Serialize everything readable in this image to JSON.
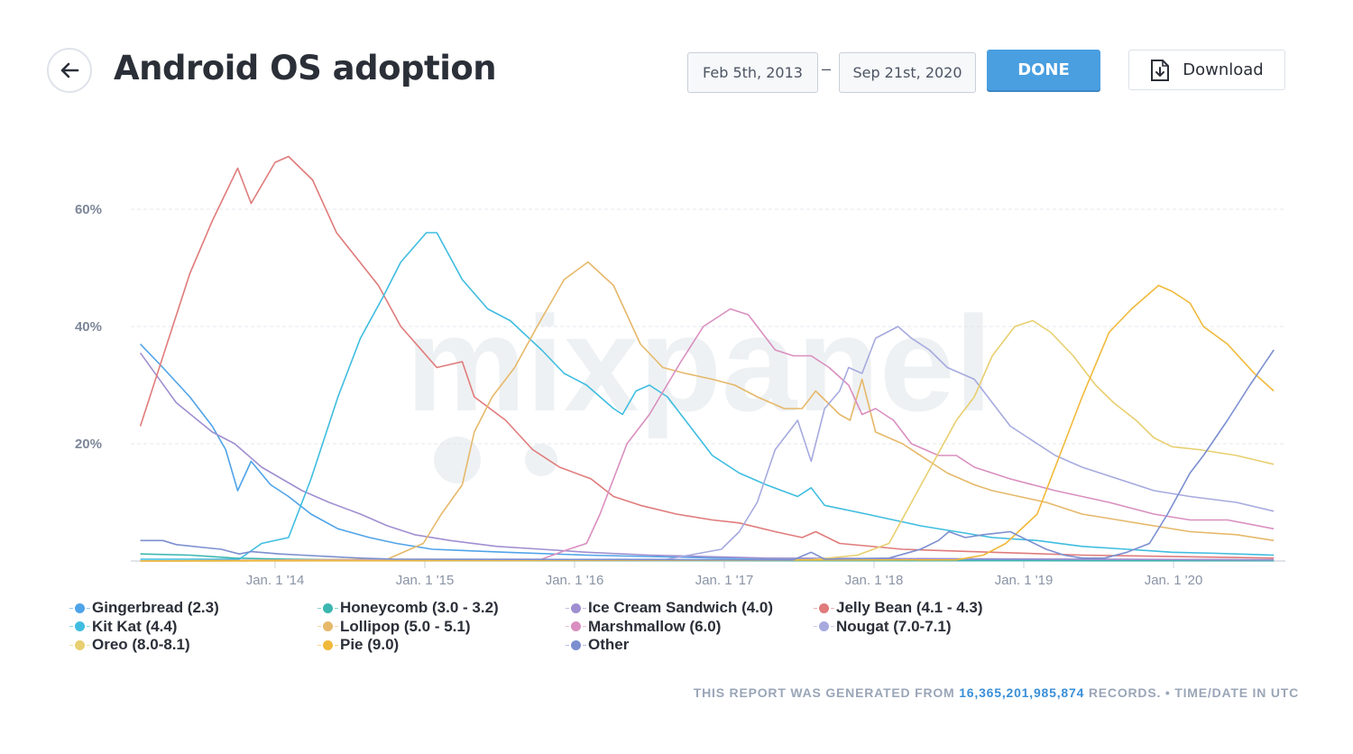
{
  "header": {
    "title": "Android OS adoption",
    "date_from": "Feb 5th, 2013",
    "date_separator": "–",
    "date_to": "Sep 21st, 2020",
    "done_label": "DONE",
    "download_label": "Download"
  },
  "footer": {
    "prefix": "THIS REPORT WAS GENERATED FROM ",
    "records": "16,365,201,985,874",
    "suffix": " RECORDS. • TIME/DATE IN UTC"
  },
  "watermark": "mixpanel",
  "chart_data": {
    "type": "line",
    "title": "Android OS adoption",
    "xlabel": "",
    "ylabel": "",
    "xlim": [
      2013.1,
      2020.67
    ],
    "ylim": [
      0,
      70
    ],
    "y_ticks": [
      {
        "v": 20,
        "label": "20%"
      },
      {
        "v": 40,
        "label": "40%"
      },
      {
        "v": 60,
        "label": "60%"
      }
    ],
    "x_ticks": [
      {
        "v": 2014,
        "label": "Jan. 1 '14"
      },
      {
        "v": 2015,
        "label": "Jan. 1 '15"
      },
      {
        "v": 2016,
        "label": "Jan. 1 '16"
      },
      {
        "v": 2017,
        "label": "Jan. 1 '17"
      },
      {
        "v": 2018,
        "label": "Jan. 1 '18"
      },
      {
        "v": 2019,
        "label": "Jan. 1 '19"
      },
      {
        "v": 2020,
        "label": "Jan. 1 '20"
      }
    ],
    "grid": true,
    "legend_position": "bottom",
    "series": [
      {
        "name": "Gingerbread (2.3)",
        "color": "#4fa3e8",
        "points": [
          [
            2013.1,
            37
          ],
          [
            2013.25,
            33
          ],
          [
            2013.43,
            28
          ],
          [
            2013.58,
            23
          ],
          [
            2013.67,
            19
          ],
          [
            2013.75,
            12
          ],
          [
            2013.84,
            17
          ],
          [
            2013.97,
            13
          ],
          [
            2014.09,
            11
          ],
          [
            2014.24,
            8
          ],
          [
            2014.42,
            5.5
          ],
          [
            2014.63,
            4
          ],
          [
            2014.81,
            3
          ],
          [
            2015.05,
            2
          ],
          [
            2015.54,
            1.5
          ],
          [
            2016.08,
            1
          ],
          [
            2016.98,
            0.5
          ],
          [
            2018.0,
            0.3
          ],
          [
            2020.67,
            0.2
          ]
        ]
      },
      {
        "name": "Honeycomb (3.0 - 3.2)",
        "color": "#3bb6b0",
        "points": [
          [
            2013.1,
            1.2
          ],
          [
            2013.43,
            1
          ],
          [
            2013.73,
            0.5
          ],
          [
            2014.09,
            0.3
          ],
          [
            2015.0,
            0.1
          ],
          [
            2020.67,
            0.05
          ]
        ]
      },
      {
        "name": "Ice Cream Sandwich (4.0)",
        "color": "#a08fd0",
        "points": [
          [
            2013.1,
            35.5
          ],
          [
            2013.34,
            27
          ],
          [
            2013.58,
            22
          ],
          [
            2013.73,
            20
          ],
          [
            2013.91,
            16
          ],
          [
            2014.18,
            12
          ],
          [
            2014.36,
            10
          ],
          [
            2014.57,
            8
          ],
          [
            2014.75,
            6
          ],
          [
            2014.93,
            4.5
          ],
          [
            2015.17,
            3.5
          ],
          [
            2015.48,
            2.5
          ],
          [
            2015.78,
            2
          ],
          [
            2016.08,
            1.5
          ],
          [
            2016.5,
            1
          ],
          [
            2017.28,
            0.5
          ],
          [
            2020.67,
            0.2
          ]
        ]
      },
      {
        "name": "Jelly Bean (4.1 - 4.3)",
        "color": "#e07b7b",
        "points": [
          [
            2013.1,
            23
          ],
          [
            2013.43,
            49
          ],
          [
            2013.58,
            58
          ],
          [
            2013.75,
            67
          ],
          [
            2013.84,
            61
          ],
          [
            2014.0,
            68
          ],
          [
            2014.09,
            69
          ],
          [
            2014.25,
            65
          ],
          [
            2014.41,
            56
          ],
          [
            2014.69,
            47
          ],
          [
            2014.84,
            40
          ],
          [
            2015.08,
            33
          ],
          [
            2015.25,
            34
          ],
          [
            2015.33,
            28
          ],
          [
            2015.54,
            24
          ],
          [
            2015.72,
            19
          ],
          [
            2015.9,
            16
          ],
          [
            2016.11,
            14
          ],
          [
            2016.26,
            11
          ],
          [
            2016.44,
            9.5
          ],
          [
            2016.68,
            8
          ],
          [
            2016.92,
            7
          ],
          [
            2017.1,
            6.5
          ],
          [
            2017.34,
            5
          ],
          [
            2017.52,
            4
          ],
          [
            2017.61,
            5
          ],
          [
            2017.77,
            3
          ],
          [
            2018.19,
            2
          ],
          [
            2018.79,
            1.5
          ],
          [
            2019.39,
            1
          ],
          [
            2020.67,
            0.5
          ]
        ]
      },
      {
        "name": "Kit Kat (4.4)",
        "color": "#3fbde0",
        "points": [
          [
            2013.1,
            0.3
          ],
          [
            2013.76,
            0.3
          ],
          [
            2013.91,
            3
          ],
          [
            2014.09,
            4
          ],
          [
            2014.24,
            14
          ],
          [
            2014.42,
            28
          ],
          [
            2014.57,
            38
          ],
          [
            2014.72,
            45
          ],
          [
            2014.84,
            51
          ],
          [
            2015.01,
            56
          ],
          [
            2015.08,
            56
          ],
          [
            2015.25,
            48
          ],
          [
            2015.42,
            43
          ],
          [
            2015.57,
            41
          ],
          [
            2015.78,
            36
          ],
          [
            2015.93,
            32
          ],
          [
            2016.08,
            30
          ],
          [
            2016.26,
            26
          ],
          [
            2016.32,
            25
          ],
          [
            2016.41,
            29
          ],
          [
            2016.5,
            30
          ],
          [
            2016.62,
            28
          ],
          [
            2016.8,
            22
          ],
          [
            2016.92,
            18
          ],
          [
            2017.1,
            15
          ],
          [
            2017.28,
            13
          ],
          [
            2017.49,
            11
          ],
          [
            2017.58,
            12.5
          ],
          [
            2017.67,
            9.5
          ],
          [
            2017.95,
            8
          ],
          [
            2018.13,
            7
          ],
          [
            2018.31,
            6
          ],
          [
            2018.55,
            5
          ],
          [
            2018.79,
            4
          ],
          [
            2019.09,
            3.5
          ],
          [
            2019.39,
            2.5
          ],
          [
            2019.69,
            2
          ],
          [
            2019.99,
            1.5
          ],
          [
            2020.29,
            1.3
          ],
          [
            2020.67,
            1
          ]
        ]
      },
      {
        "name": "Lollipop (5.0 - 5.1)",
        "color": "#e6b86a",
        "points": [
          [
            2013.1,
            0
          ],
          [
            2014.75,
            0.3
          ],
          [
            2014.99,
            3
          ],
          [
            2015.11,
            8
          ],
          [
            2015.25,
            13
          ],
          [
            2015.33,
            22
          ],
          [
            2015.45,
            28
          ],
          [
            2015.6,
            33
          ],
          [
            2015.75,
            40
          ],
          [
            2015.93,
            48
          ],
          [
            2016.09,
            51
          ],
          [
            2016.26,
            47
          ],
          [
            2016.35,
            42
          ],
          [
            2016.44,
            37
          ],
          [
            2016.59,
            33
          ],
          [
            2016.74,
            32
          ],
          [
            2016.92,
            31
          ],
          [
            2017.07,
            30
          ],
          [
            2017.22,
            28
          ],
          [
            2017.4,
            26
          ],
          [
            2017.52,
            26
          ],
          [
            2017.61,
            29
          ],
          [
            2017.77,
            25
          ],
          [
            2017.84,
            24
          ],
          [
            2017.92,
            31
          ],
          [
            2018.01,
            22
          ],
          [
            2018.19,
            20
          ],
          [
            2018.37,
            17
          ],
          [
            2018.49,
            15
          ],
          [
            2018.67,
            13
          ],
          [
            2018.79,
            12
          ],
          [
            2018.97,
            11
          ],
          [
            2019.15,
            10
          ],
          [
            2019.39,
            8
          ],
          [
            2019.63,
            7
          ],
          [
            2019.87,
            6
          ],
          [
            2020.11,
            5
          ],
          [
            2020.42,
            4.5
          ],
          [
            2020.67,
            3.5
          ]
        ]
      },
      {
        "name": "Marshmallow (6.0)",
        "color": "#d98fbf",
        "points": [
          [
            2013.1,
            0
          ],
          [
            2015.78,
            0.3
          ],
          [
            2015.96,
            2
          ],
          [
            2016.08,
            3
          ],
          [
            2016.17,
            8
          ],
          [
            2016.35,
            20
          ],
          [
            2016.5,
            25
          ],
          [
            2016.71,
            34
          ],
          [
            2016.86,
            40
          ],
          [
            2017.04,
            43
          ],
          [
            2017.16,
            42
          ],
          [
            2017.34,
            36
          ],
          [
            2017.46,
            35
          ],
          [
            2017.58,
            35
          ],
          [
            2017.7,
            33
          ],
          [
            2017.83,
            30
          ],
          [
            2017.92,
            25
          ],
          [
            2018.01,
            26
          ],
          [
            2018.13,
            24
          ],
          [
            2018.25,
            20
          ],
          [
            2018.43,
            18
          ],
          [
            2018.55,
            18
          ],
          [
            2018.67,
            16
          ],
          [
            2018.91,
            14
          ],
          [
            2019.21,
            12
          ],
          [
            2019.57,
            10
          ],
          [
            2019.87,
            8
          ],
          [
            2020.11,
            7
          ],
          [
            2020.36,
            7
          ],
          [
            2020.67,
            5.5
          ]
        ]
      },
      {
        "name": "Nougat (7.0-7.1)",
        "color": "#a6aade",
        "points": [
          [
            2013.1,
            0
          ],
          [
            2016.62,
            0.3
          ],
          [
            2016.98,
            2
          ],
          [
            2017.1,
            5
          ],
          [
            2017.22,
            10
          ],
          [
            2017.34,
            19
          ],
          [
            2017.46,
            23
          ],
          [
            2017.49,
            24
          ],
          [
            2017.58,
            17
          ],
          [
            2017.67,
            26
          ],
          [
            2017.77,
            29
          ],
          [
            2017.83,
            33
          ],
          [
            2017.92,
            32
          ],
          [
            2018.01,
            38
          ],
          [
            2018.16,
            40
          ],
          [
            2018.25,
            38
          ],
          [
            2018.37,
            36
          ],
          [
            2018.49,
            33
          ],
          [
            2018.67,
            31
          ],
          [
            2018.79,
            27
          ],
          [
            2018.91,
            23
          ],
          [
            2019.03,
            21
          ],
          [
            2019.21,
            18
          ],
          [
            2019.39,
            16
          ],
          [
            2019.63,
            14
          ],
          [
            2019.87,
            12
          ],
          [
            2020.11,
            11
          ],
          [
            2020.42,
            10
          ],
          [
            2020.67,
            8.5
          ]
        ]
      },
      {
        "name": "Oreo (8.0-8.1)",
        "color": "#e8cf6f",
        "points": [
          [
            2013.1,
            0
          ],
          [
            2017.58,
            0.2
          ],
          [
            2017.89,
            1
          ],
          [
            2018.1,
            3
          ],
          [
            2018.25,
            10
          ],
          [
            2018.4,
            17
          ],
          [
            2018.55,
            24
          ],
          [
            2018.67,
            28
          ],
          [
            2018.79,
            35
          ],
          [
            2018.94,
            40
          ],
          [
            2019.06,
            41
          ],
          [
            2019.18,
            39
          ],
          [
            2019.33,
            35
          ],
          [
            2019.48,
            30
          ],
          [
            2019.6,
            27
          ],
          [
            2019.75,
            24
          ],
          [
            2019.87,
            21
          ],
          [
            2019.99,
            19.5
          ],
          [
            2020.17,
            19
          ],
          [
            2020.42,
            18
          ],
          [
            2020.67,
            16.5
          ]
        ]
      },
      {
        "name": "Pie (9.0)",
        "color": "#f0b93a",
        "points": [
          [
            2013.1,
            0
          ],
          [
            2018.55,
            0.2
          ],
          [
            2018.73,
            1
          ],
          [
            2018.88,
            3
          ],
          [
            2019.09,
            8
          ],
          [
            2019.24,
            18
          ],
          [
            2019.39,
            28
          ],
          [
            2019.57,
            39
          ],
          [
            2019.72,
            43
          ],
          [
            2019.9,
            47
          ],
          [
            2019.99,
            46
          ],
          [
            2020.11,
            44
          ],
          [
            2020.2,
            40
          ],
          [
            2020.36,
            37
          ],
          [
            2020.54,
            32
          ],
          [
            2020.67,
            29
          ]
        ]
      },
      {
        "name": "Other",
        "color": "#7b8fd0",
        "points": [
          [
            2013.1,
            3.5
          ],
          [
            2013.25,
            3.5
          ],
          [
            2013.34,
            2.8
          ],
          [
            2013.52,
            2.3
          ],
          [
            2013.64,
            2
          ],
          [
            2013.76,
            1.2
          ],
          [
            2013.84,
            1.6
          ],
          [
            2014.03,
            1.2
          ],
          [
            2014.18,
            1
          ],
          [
            2014.33,
            0.8
          ],
          [
            2014.57,
            0.5
          ],
          [
            2014.81,
            0.3
          ],
          [
            2017.46,
            0.2
          ],
          [
            2017.58,
            1.5
          ],
          [
            2017.67,
            0.3
          ],
          [
            2018.1,
            0.5
          ],
          [
            2018.31,
            2
          ],
          [
            2018.43,
            3.5
          ],
          [
            2018.5,
            5
          ],
          [
            2018.61,
            4
          ],
          [
            2018.73,
            4.5
          ],
          [
            2018.91,
            5
          ],
          [
            2019.03,
            3.5
          ],
          [
            2019.15,
            2
          ],
          [
            2019.27,
            1
          ],
          [
            2019.39,
            0.5
          ],
          [
            2019.54,
            0.5
          ],
          [
            2019.69,
            1.5
          ],
          [
            2019.84,
            3
          ],
          [
            2019.96,
            8
          ],
          [
            2020.11,
            15
          ],
          [
            2020.2,
            18
          ],
          [
            2020.36,
            24
          ],
          [
            2020.51,
            30
          ],
          [
            2020.67,
            36
          ]
        ]
      }
    ]
  }
}
